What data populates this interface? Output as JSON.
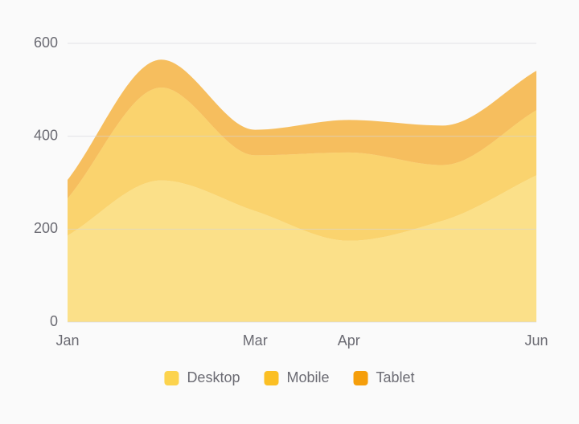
{
  "chart_data": {
    "type": "area",
    "stacked": true,
    "categories": [
      "Jan",
      null,
      "Mar",
      "Apr",
      null,
      "Jun"
    ],
    "series": [
      {
        "name": "Desktop",
        "color": "#fcd34d",
        "values": [
          186,
          305,
          239,
          175,
          218,
          316
        ]
      },
      {
        "name": "Mobile",
        "color": "#fbbf24",
        "values": [
          80,
          200,
          120,
          190,
          120,
          140
        ]
      },
      {
        "name": "Tablet",
        "color": "#f59e0b",
        "values": [
          40,
          60,
          55,
          70,
          85,
          85
        ]
      }
    ],
    "ylim": [
      0,
      600
    ],
    "yticks": [
      0,
      200,
      400,
      600
    ],
    "grid": true,
    "legend": "bottom"
  }
}
